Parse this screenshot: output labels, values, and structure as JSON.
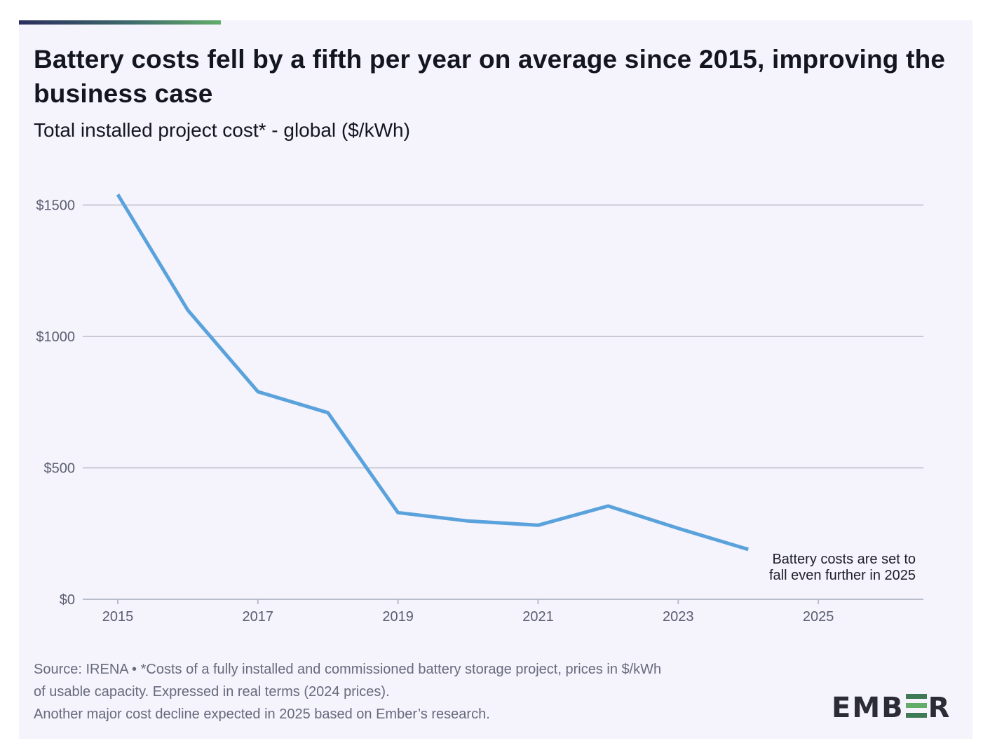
{
  "header": {
    "title": "Battery costs fell by a fifth per year on average since 2015, improving the business case",
    "subtitle": "Total installed project cost* - global ($/kWh)"
  },
  "footer": {
    "source_line1": "Source: IRENA • *Costs of a fully installed and commissioned battery storage project, prices in $/kWh",
    "source_line2": "of usable capacity. Expressed in real terms (2024 prices).",
    "source_line3": "Another major cost decline expected in 2025 based on Ember’s research.",
    "logo_left": "EMB",
    "logo_right": "R"
  },
  "colors": {
    "line": "#5aa2dc",
    "grid": "#b9bcc9",
    "axis_text": "#5a5e70",
    "accent_green": "#62ad6a"
  },
  "chart_data": {
    "type": "line",
    "title": "Battery costs fell by a fifth per year on average since 2015, improving the business case",
    "subtitle": "Total installed project cost* - global ($/kWh)",
    "xlabel": "",
    "ylabel": "",
    "xlim": [
      2014.5,
      2026.5
    ],
    "ylim": [
      0,
      1600
    ],
    "xticks": [
      2015,
      2017,
      2019,
      2021,
      2023,
      2025
    ],
    "yticks": [
      {
        "value": 0,
        "label": "$0"
      },
      {
        "value": 500,
        "label": "$500"
      },
      {
        "value": 1000,
        "label": "$1000"
      },
      {
        "value": 1500,
        "label": "$1500"
      }
    ],
    "grid": true,
    "series": [
      {
        "name": "Total installed project cost",
        "x": [
          2015,
          2016,
          2017,
          2018,
          2019,
          2020,
          2021,
          2022,
          2023,
          2024
        ],
        "values": [
          1540,
          1100,
          790,
          710,
          330,
          298,
          282,
          355,
          270,
          190
        ]
      }
    ],
    "annotation": {
      "x": 2024,
      "value": 190,
      "lines": [
        "Battery costs are set to",
        "fall even further in 2025"
      ]
    }
  }
}
